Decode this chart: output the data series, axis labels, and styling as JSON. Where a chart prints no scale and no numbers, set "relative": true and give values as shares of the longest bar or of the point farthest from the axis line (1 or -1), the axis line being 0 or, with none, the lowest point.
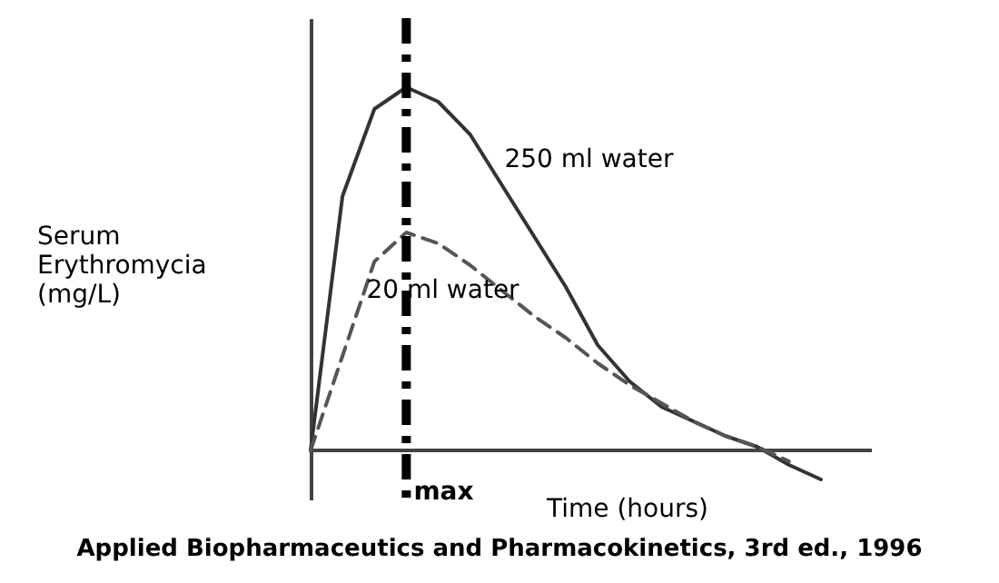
{
  "chart_data": {
    "type": "line",
    "relative": true,
    "xlabel": "Time (hours)",
    "ylabel": "Serum Erythromycia (mg/L)",
    "tick_labels": false,
    "grid": false,
    "categories": [
      null,
      null,
      null,
      null,
      null,
      null,
      null,
      null,
      null,
      null,
      null,
      null,
      null,
      null,
      null,
      null,
      null
    ],
    "series": [
      {
        "name": "250 ml water",
        "color": "#333333",
        "line_style": "solid",
        "values": [
          0,
          0.7,
          0.94,
          1.0,
          0.96,
          0.87,
          0.73,
          0.59,
          0.45,
          0.29,
          0.19,
          0.12,
          0.08,
          0.04,
          0.01,
          -0.04,
          -0.08
        ]
      },
      {
        "name": "20 ml water",
        "color": "#555555",
        "line_style": "dashed",
        "values": [
          0,
          0.26,
          0.52,
          0.6,
          0.57,
          0.51,
          0.44,
          0.37,
          0.31,
          0.24,
          0.18,
          0.13,
          0.08,
          0.04,
          0.01,
          -0.03,
          null
        ]
      }
    ],
    "ref_lines": [
      {
        "axis": "x",
        "label": "max",
        "line_style": "dashdot"
      }
    ],
    "annotations": [
      "Applied Biopharmaceutics and Pharmacokinetics, 3rd ed., 1996"
    ]
  }
}
